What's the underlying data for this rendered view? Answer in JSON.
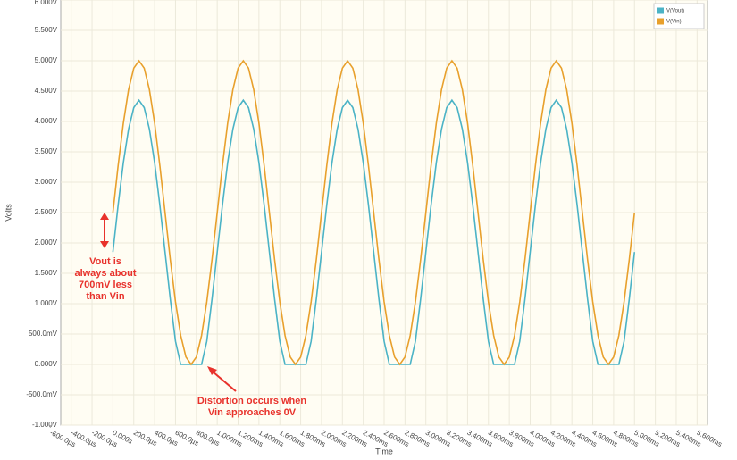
{
  "chart_data": {
    "type": "line",
    "x_label": "Time",
    "y_label": "Volts",
    "x": [
      0,
      0.05,
      0.1,
      0.15,
      0.2,
      0.25,
      0.3,
      0.35,
      0.4,
      0.45,
      0.5,
      0.55,
      0.6,
      0.65,
      0.7,
      0.75,
      0.8,
      0.85,
      0.9,
      0.95,
      1,
      1.05,
      1.1,
      1.15,
      1.2,
      1.25,
      1.3,
      1.35,
      1.4,
      1.45,
      1.5,
      1.55,
      1.6,
      1.65,
      1.7,
      1.75,
      1.8,
      1.85,
      1.9,
      1.95,
      2,
      2.05,
      2.1,
      2.15,
      2.2,
      2.25,
      2.3,
      2.35,
      2.4,
      2.45,
      2.5,
      2.55,
      2.6,
      2.65,
      2.7,
      2.75,
      2.8,
      2.85,
      2.9,
      2.95,
      3,
      3.05,
      3.1,
      3.15,
      3.2,
      3.25,
      3.3,
      3.35,
      3.4,
      3.45,
      3.5,
      3.55,
      3.6,
      3.65,
      3.7,
      3.75,
      3.8,
      3.85,
      3.9,
      3.95,
      4,
      4.05,
      4.1,
      4.15,
      4.2,
      4.25,
      4.3,
      4.35,
      4.4,
      4.45,
      4.5,
      4.55,
      4.6,
      4.65,
      4.7,
      4.75,
      4.8,
      4.85,
      4.9,
      4.95,
      5
    ],
    "series": [
      {
        "name": "V(Vout)",
        "color": "#4bb3c6",
        "values": [
          1.85,
          2.623,
          3.32,
          3.873,
          4.228,
          4.35,
          4.228,
          3.873,
          3.32,
          2.623,
          1.85,
          1.077,
          0.38,
          0,
          0,
          0,
          0,
          0,
          0.38,
          1.077,
          1.85,
          2.623,
          3.32,
          3.873,
          4.228,
          4.35,
          4.228,
          3.873,
          3.32,
          2.623,
          1.85,
          1.077,
          0.38,
          0,
          0,
          0,
          0,
          0,
          0.38,
          1.077,
          1.85,
          2.623,
          3.32,
          3.873,
          4.228,
          4.35,
          4.228,
          3.873,
          3.32,
          2.623,
          1.85,
          1.077,
          0.38,
          0,
          0,
          0,
          0,
          0,
          0.38,
          1.077,
          1.85,
          2.623,
          3.32,
          3.873,
          4.228,
          4.35,
          4.228,
          3.873,
          3.32,
          2.623,
          1.85,
          1.077,
          0.38,
          0,
          0,
          0,
          0,
          0,
          0.38,
          1.077,
          1.85,
          2.623,
          3.32,
          3.873,
          4.228,
          4.35,
          4.228,
          3.873,
          3.32,
          2.623,
          1.85,
          1.077,
          0.38,
          0,
          0,
          0,
          0,
          0,
          0.38,
          1.077,
          1.85
        ]
      },
      {
        "name": "V(Vin)",
        "color": "#e8a02c",
        "values": [
          2.5,
          3.273,
          3.97,
          4.523,
          4.878,
          5,
          4.878,
          4.523,
          3.97,
          3.273,
          2.5,
          1.727,
          1.03,
          0.477,
          0.122,
          0,
          0.122,
          0.477,
          1.03,
          1.727,
          2.5,
          3.273,
          3.97,
          4.523,
          4.878,
          5,
          4.878,
          4.523,
          3.97,
          3.273,
          2.5,
          1.727,
          1.03,
          0.477,
          0.122,
          0,
          0.122,
          0.477,
          1.03,
          1.727,
          2.5,
          3.273,
          3.97,
          4.523,
          4.878,
          5,
          4.878,
          4.523,
          3.97,
          3.273,
          2.5,
          1.727,
          1.03,
          0.477,
          0.122,
          0,
          0.122,
          0.477,
          1.03,
          1.727,
          2.5,
          3.273,
          3.97,
          4.523,
          4.878,
          5,
          4.878,
          4.523,
          3.97,
          3.273,
          2.5,
          1.727,
          1.03,
          0.477,
          0.122,
          0,
          0.122,
          0.477,
          1.03,
          1.727,
          2.5,
          3.273,
          3.97,
          4.523,
          4.878,
          5,
          4.878,
          4.523,
          3.97,
          3.273,
          2.5,
          1.727,
          1.03,
          0.477,
          0.122,
          0,
          0.122,
          0.477,
          1.03,
          1.727,
          2.5
        ]
      }
    ],
    "xlim": [
      -0.5,
      5.7
    ],
    "ylim": [
      -1,
      6
    ],
    "xticks": [
      {
        "value": -0.6,
        "label": "-600.0µs"
      },
      {
        "value": -0.4,
        "label": "-400.0µs"
      },
      {
        "value": -0.2,
        "label": "-200.0µs"
      },
      {
        "value": 0,
        "label": "0.000s"
      },
      {
        "value": 0.2,
        "label": "200.0µs"
      },
      {
        "value": 0.4,
        "label": "400.0µs"
      },
      {
        "value": 0.6,
        "label": "600.0µs"
      },
      {
        "value": 0.8,
        "label": "800.0µs"
      },
      {
        "value": 1,
        "label": "1.000ms"
      },
      {
        "value": 1.2,
        "label": "1.200ms"
      },
      {
        "value": 1.4,
        "label": "1.400ms"
      },
      {
        "value": 1.6,
        "label": "1.600ms"
      },
      {
        "value": 1.8,
        "label": "1.800ms"
      },
      {
        "value": 2,
        "label": "2.000ms"
      },
      {
        "value": 2.2,
        "label": "2.200ms"
      },
      {
        "value": 2.4,
        "label": "2.400ms"
      },
      {
        "value": 2.6,
        "label": "2.600ms"
      },
      {
        "value": 2.8,
        "label": "2.800ms"
      },
      {
        "value": 3,
        "label": "3.000ms"
      },
      {
        "value": 3.2,
        "label": "3.200ms"
      },
      {
        "value": 3.4,
        "label": "3.400ms"
      },
      {
        "value": 3.6,
        "label": "3.600ms"
      },
      {
        "value": 3.8,
        "label": "3.800ms"
      },
      {
        "value": 4,
        "label": "4.000ms"
      },
      {
        "value": 4.2,
        "label": "4.200ms"
      },
      {
        "value": 4.4,
        "label": "4.400ms"
      },
      {
        "value": 4.6,
        "label": "4.600ms"
      },
      {
        "value": 4.8,
        "label": "4.800ms"
      },
      {
        "value": 5,
        "label": "5.000ms"
      },
      {
        "value": 5.2,
        "label": "5.200ms"
      },
      {
        "value": 5.4,
        "label": "5.400ms"
      },
      {
        "value": 5.6,
        "label": "5.600ms"
      }
    ],
    "yticks": [
      {
        "value": -1,
        "label": "-1.000V"
      },
      {
        "value": -0.5,
        "label": "-500.0mV"
      },
      {
        "value": 0,
        "label": "0.000V"
      },
      {
        "value": 0.5,
        "label": "500.0mV"
      },
      {
        "value": 1,
        "label": "1.000V"
      },
      {
        "value": 1.5,
        "label": "1.500V"
      },
      {
        "value": 2,
        "label": "2.000V"
      },
      {
        "value": 2.5,
        "label": "2.500V"
      },
      {
        "value": 3,
        "label": "3.000V"
      },
      {
        "value": 3.5,
        "label": "3.500V"
      },
      {
        "value": 4,
        "label": "4.000V"
      },
      {
        "value": 4.5,
        "label": "4.500V"
      },
      {
        "value": 5,
        "label": "5.000V"
      },
      {
        "value": 5.5,
        "label": "5.500V"
      },
      {
        "value": 6,
        "label": "6.000V"
      }
    ],
    "grid": true,
    "legend": "top-right",
    "annotations": [
      {
        "lines": [
          "Vout is",
          "always about",
          "700mV less",
          "than Vin"
        ],
        "color": "#e8322c"
      },
      {
        "lines": [
          "Distortion occurs when",
          "Vin approaches 0V"
        ],
        "color": "#e8322c"
      }
    ]
  }
}
